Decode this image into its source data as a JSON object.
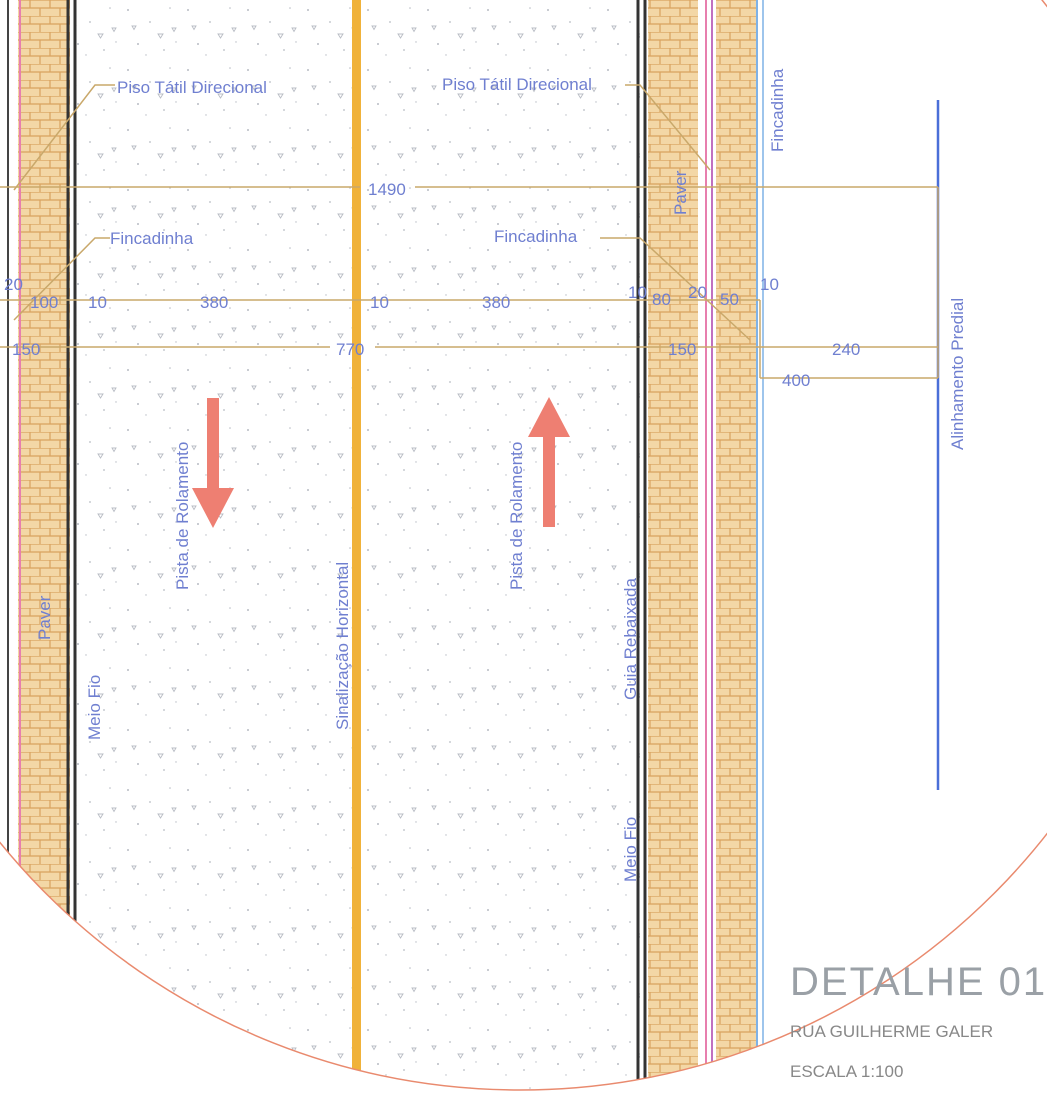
{
  "labels": {
    "piso_tatil_left": "Piso Tátil Direcional",
    "piso_tatil_right": "Piso Tátil Direcional",
    "fincadinha_left": "Fincadinha",
    "fincadinha_right": "Fincadinha",
    "fincadinha_top_right": "Fincadinha",
    "paver_left": "Paver",
    "paver_right": "Paver",
    "meio_fio_left": "Meio Fio",
    "meio_fio_right": "Meio Fio",
    "pista_left": "Pista de Rolamento",
    "pista_right": "Pista de Rolamento",
    "sinalizacao": "Sinalização Horizontal",
    "guia_rebaixada": "Guia Rebaixada",
    "alinhamento_predial": "Alinhamento Predial"
  },
  "dimensions": {
    "d1490": "1490",
    "d770": "770",
    "d380_left": "380",
    "d380_right": "380",
    "d10_left": "10",
    "d10_center": "10",
    "d10_right": "10",
    "d10_far_right": "10",
    "d100": "100",
    "d20_left": "20",
    "d150_left": "150",
    "d150_right": "150",
    "d80": "80",
    "d20_right": "20",
    "d50": "50",
    "d240": "240",
    "d400": "400"
  },
  "title": {
    "heading": "DETALHE 01",
    "street": "RUA GUILHERME GALER",
    "scale": "ESCALA 1:100"
  },
  "colors": {
    "paver": "#e8c08a",
    "curb": "#3a3a3a",
    "center_line": "#f0b23a",
    "dimension": "#c9a86a",
    "label": "#6f7fd0",
    "arrow": "#ee7f72",
    "circle": "#e98a6e"
  }
}
